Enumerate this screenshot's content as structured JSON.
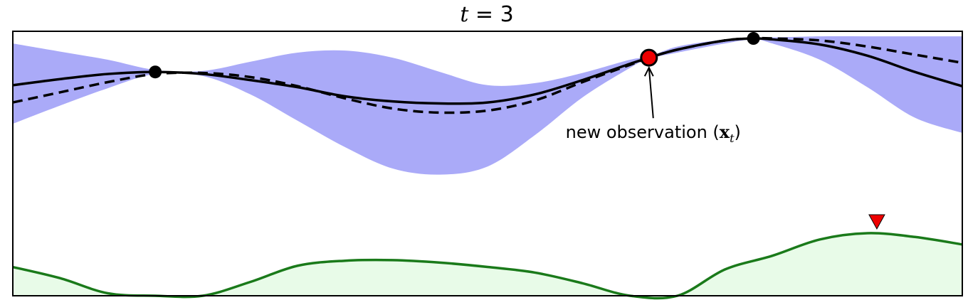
{
  "chart_data": {
    "type": "line",
    "title": {
      "var": "t",
      "eq": " = 3"
    },
    "xlim": [
      0,
      1
    ],
    "posterior_ylim": [
      -1,
      1
    ],
    "acquisition_ylim": [
      0,
      1
    ],
    "grid": false,
    "colors": {
      "band": "#aaaaf8",
      "mean": "#000000",
      "truth": "#000000",
      "acquisition_line": "#1a7a1a",
      "acquisition_fill": "#e8fbe8",
      "new_point": "#ee0000",
      "marker": "#ee0000",
      "observed_point": "#000000"
    },
    "series": [
      {
        "values_x": [
          0,
          0.05,
          0.1,
          0.15,
          0.2,
          0.25,
          0.3,
          0.35,
          0.4,
          0.45,
          0.5,
          0.55,
          0.6,
          0.65,
          0.67,
          0.7,
          0.75,
          0.78,
          0.8,
          0.85,
          0.9,
          0.95,
          1.0
        ],
        "mean": [
          0.47,
          0.53,
          0.58,
          0.6,
          0.58,
          0.52,
          0.45,
          0.36,
          0.31,
          0.29,
          0.3,
          0.38,
          0.52,
          0.68,
          0.74,
          0.82,
          0.91,
          0.93,
          0.92,
          0.87,
          0.76,
          0.6,
          0.46
        ],
        "upper": [
          0.88,
          0.8,
          0.72,
          0.62,
          0.61,
          0.7,
          0.79,
          0.81,
          0.74,
          0.6,
          0.47,
          0.49,
          0.59,
          0.72,
          0.75,
          0.85,
          0.92,
          0.94,
          0.94,
          0.95,
          0.95,
          0.95,
          0.95
        ],
        "lower": [
          0.09,
          0.27,
          0.44,
          0.58,
          0.56,
          0.38,
          0.12,
          -0.14,
          -0.35,
          -0.41,
          -0.33,
          -0.02,
          0.35,
          0.64,
          0.73,
          0.79,
          0.88,
          0.92,
          0.88,
          0.72,
          0.45,
          0.15,
          0.0
        ]
      },
      {
        "values_x": [
          0,
          0.05,
          0.1,
          0.15,
          0.2,
          0.25,
          0.3,
          0.35,
          0.4,
          0.45,
          0.5,
          0.55,
          0.6,
          0.65,
          0.67,
          0.7,
          0.75,
          0.78,
          0.8,
          0.85,
          0.9,
          0.95,
          1.0
        ],
        "truth": [
          0.3,
          0.4,
          0.5,
          0.58,
          0.59,
          0.55,
          0.46,
          0.34,
          0.24,
          0.2,
          0.22,
          0.32,
          0.5,
          0.67,
          0.74,
          0.82,
          0.91,
          0.93,
          0.93,
          0.91,
          0.85,
          0.77,
          0.69
        ]
      }
    ],
    "observations": [
      {
        "x": 0.15,
        "y": 0.6
      },
      {
        "x": 0.78,
        "y": 0.93
      }
    ],
    "new_observation": {
      "x": 0.67,
      "y": 0.74
    },
    "annotation": {
      "prefix": "new observation (",
      "symbol": "x",
      "subscript": "t",
      "suffix": ")"
    },
    "acquisition": {
      "x": [
        0,
        0.05,
        0.1,
        0.15,
        0.2,
        0.25,
        0.3,
        0.35,
        0.4,
        0.45,
        0.5,
        0.55,
        0.6,
        0.65,
        0.7,
        0.75,
        0.8,
        0.85,
        0.9,
        0.95,
        1.0
      ],
      "y": [
        0.46,
        0.28,
        0.04,
        0.0,
        0.0,
        0.22,
        0.48,
        0.56,
        0.57,
        0.53,
        0.46,
        0.37,
        0.2,
        0.0,
        0.0,
        0.42,
        0.64,
        0.9,
        1.0,
        0.94,
        0.82
      ]
    },
    "acquisition_max_x": 0.91
  }
}
